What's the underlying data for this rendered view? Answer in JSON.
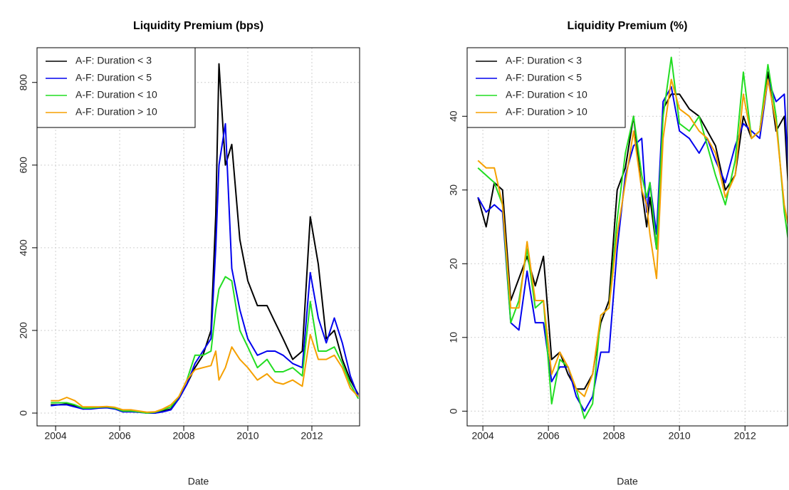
{
  "chart_data": [
    {
      "type": "line",
      "title": "Liquidity Premium (bps)",
      "x_label": "Date",
      "x": [
        2003.85,
        2004.1,
        2004.35,
        2004.6,
        2004.85,
        2005.1,
        2005.35,
        2005.6,
        2005.85,
        2006.1,
        2006.35,
        2006.6,
        2006.85,
        2007.1,
        2007.35,
        2007.6,
        2007.85,
        2008.1,
        2008.35,
        2008.6,
        2008.85,
        2009.0,
        2009.1,
        2009.3,
        2009.5,
        2009.75,
        2010.0,
        2010.3,
        2010.6,
        2010.85,
        2011.1,
        2011.4,
        2011.7,
        2011.95,
        2012.2,
        2012.45,
        2012.7,
        2012.95,
        2013.2,
        2013.45
      ],
      "series": [
        {
          "name": "A-F: Duration < 3",
          "color": "#000000",
          "values": [
            20,
            20,
            22,
            18,
            10,
            12,
            14,
            15,
            12,
            5,
            5,
            3,
            0,
            0,
            5,
            10,
            35,
            70,
            110,
            140,
            200,
            480,
            845,
            600,
            650,
            420,
            320,
            260,
            260,
            220,
            180,
            130,
            150,
            475,
            360,
            180,
            200,
            130,
            80,
            45
          ]
        },
        {
          "name": "A-F: Duration < 5",
          "color": "#0000ee",
          "values": [
            18,
            20,
            20,
            15,
            10,
            10,
            12,
            13,
            10,
            3,
            3,
            2,
            0,
            0,
            3,
            8,
            35,
            70,
            120,
            150,
            180,
            400,
            600,
            700,
            350,
            250,
            180,
            140,
            150,
            150,
            140,
            120,
            110,
            340,
            230,
            170,
            230,
            170,
            90,
            40
          ]
        },
        {
          "name": "A-F: Duration < 10",
          "color": "#22dd22",
          "values": [
            25,
            25,
            25,
            20,
            12,
            12,
            14,
            15,
            12,
            5,
            5,
            3,
            0,
            2,
            8,
            15,
            40,
            80,
            140,
            140,
            150,
            250,
            300,
            330,
            320,
            200,
            160,
            110,
            130,
            100,
            100,
            110,
            90,
            270,
            150,
            150,
            160,
            120,
            70,
            35
          ]
        },
        {
          "name": "A-F: Duration > 10",
          "color": "#f5a000",
          "values": [
            30,
            30,
            38,
            30,
            15,
            15,
            15,
            16,
            14,
            8,
            8,
            5,
            2,
            3,
            10,
            20,
            40,
            80,
            105,
            110,
            115,
            150,
            80,
            110,
            160,
            130,
            110,
            80,
            95,
            75,
            70,
            80,
            65,
            190,
            130,
            130,
            140,
            110,
            60,
            40
          ]
        }
      ],
      "xlim": [
        2003.42,
        2013.49
      ],
      "xticks": [
        2004,
        2006,
        2008,
        2010,
        2012
      ],
      "ylim": [
        -31,
        884
      ],
      "yticks": [
        0,
        200,
        400,
        600,
        800
      ],
      "grid": true,
      "legend": "topleft"
    },
    {
      "type": "line",
      "title": "Liquidity Premium (%)",
      "x_label": "Date",
      "x": [
        2003.85,
        2004.1,
        2004.35,
        2004.6,
        2004.85,
        2005.1,
        2005.35,
        2005.6,
        2005.85,
        2006.1,
        2006.35,
        2006.6,
        2006.85,
        2007.1,
        2007.35,
        2007.6,
        2007.85,
        2008.1,
        2008.35,
        2008.6,
        2008.85,
        2009.0,
        2009.1,
        2009.3,
        2009.5,
        2009.75,
        2010.0,
        2010.3,
        2010.6,
        2010.85,
        2011.1,
        2011.4,
        2011.7,
        2011.95,
        2012.2,
        2012.45,
        2012.7,
        2012.95,
        2013.2,
        2013.45
      ],
      "series": [
        {
          "name": "A-F: Duration < 3",
          "color": "#000000",
          "values": [
            29,
            25,
            31,
            30,
            15,
            18,
            21,
            17,
            21,
            7,
            8,
            5,
            3,
            3,
            5,
            12,
            15,
            30,
            33,
            40,
            30,
            25,
            29,
            22,
            41,
            43,
            43,
            41,
            40,
            38,
            36,
            30,
            32,
            40,
            37,
            38,
            46,
            38,
            40,
            20
          ]
        },
        {
          "name": "A-F: Duration < 5",
          "color": "#0000ee",
          "values": [
            29,
            27,
            28,
            27,
            12,
            11,
            19,
            12,
            12,
            4,
            6,
            6,
            2,
            0,
            2,
            8,
            8,
            22,
            32,
            36,
            37,
            27,
            31,
            24,
            42,
            44,
            38,
            37,
            35,
            37,
            34,
            31,
            36,
            39,
            38,
            37,
            45,
            42,
            43,
            21
          ]
        },
        {
          "name": "A-F: Duration < 10",
          "color": "#22dd22",
          "values": [
            33,
            32,
            31,
            28,
            12,
            15,
            22,
            14,
            15,
            1,
            7,
            6,
            3,
            -1,
            1,
            13,
            14,
            26,
            35,
            40,
            32,
            29,
            31,
            22,
            40,
            48,
            39,
            38,
            40,
            36,
            32,
            28,
            34,
            46,
            37,
            38,
            47,
            40,
            27,
            19
          ]
        },
        {
          "name": "A-F: Duration > 10",
          "color": "#f5a000",
          "values": [
            34,
            33,
            33,
            28,
            14,
            14,
            23,
            15,
            15,
            5,
            8,
            6,
            3,
            2,
            5,
            13,
            14,
            24,
            31,
            38,
            30,
            28,
            24,
            18,
            37,
            45,
            41,
            40,
            38,
            37,
            35,
            29,
            32,
            43,
            37,
            38,
            45,
            39,
            28,
            22
          ]
        }
      ],
      "xlim": [
        2003.52,
        2013.3
      ],
      "xticks": [
        2004,
        2006,
        2008,
        2010,
        2012
      ],
      "ylim": [
        -2,
        49.3
      ],
      "yticks": [
        0,
        10,
        20,
        30,
        40
      ],
      "grid": true,
      "legend": "topleft"
    }
  ]
}
